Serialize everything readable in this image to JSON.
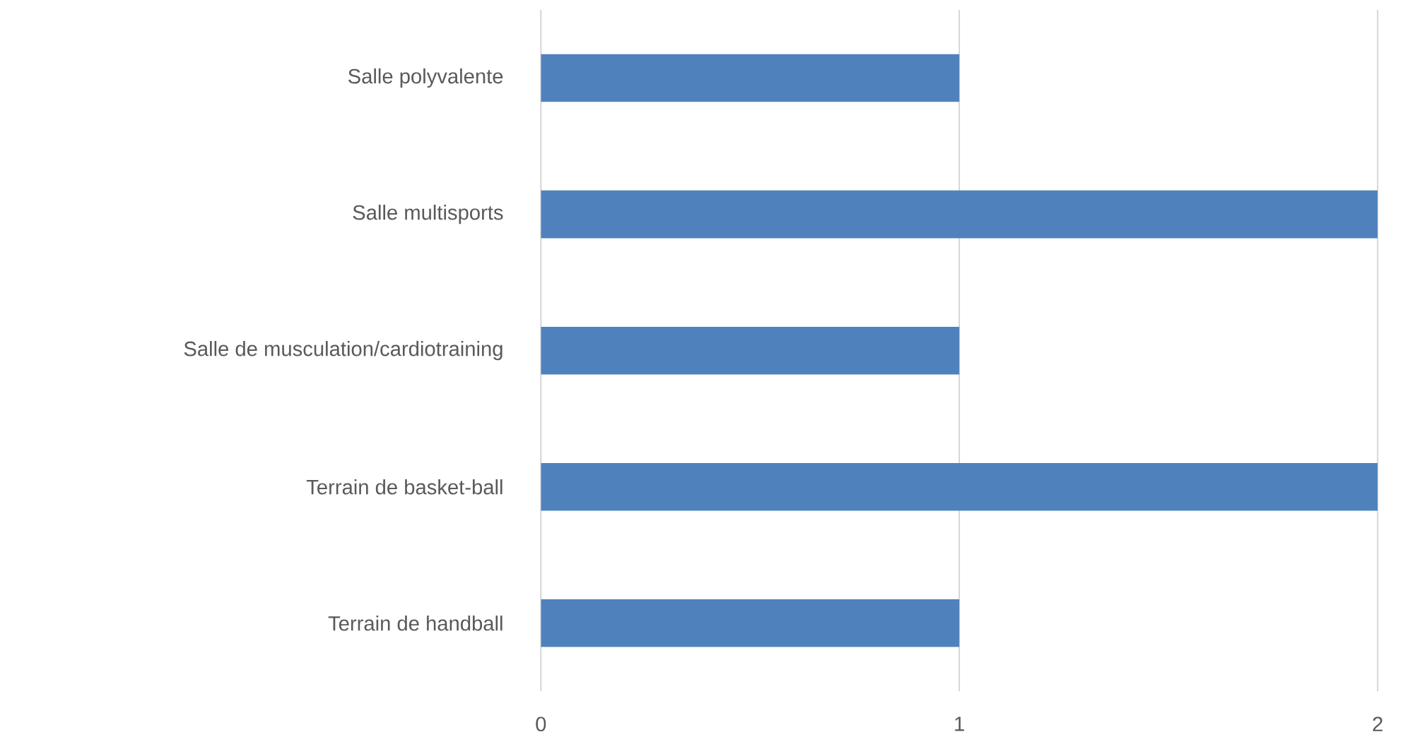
{
  "chart_data": {
    "type": "bar",
    "orientation": "horizontal",
    "categories": [
      "Salle polyvalente",
      "Salle multisports",
      "Salle de musculation/cardiotraining",
      "Terrain de basket-ball",
      "Terrain de handball"
    ],
    "values": [
      1,
      2,
      1,
      2,
      1
    ],
    "color": "#4f81bd",
    "xlim": [
      0,
      2
    ],
    "xticks": [
      0,
      1,
      2
    ],
    "grid": "x"
  }
}
